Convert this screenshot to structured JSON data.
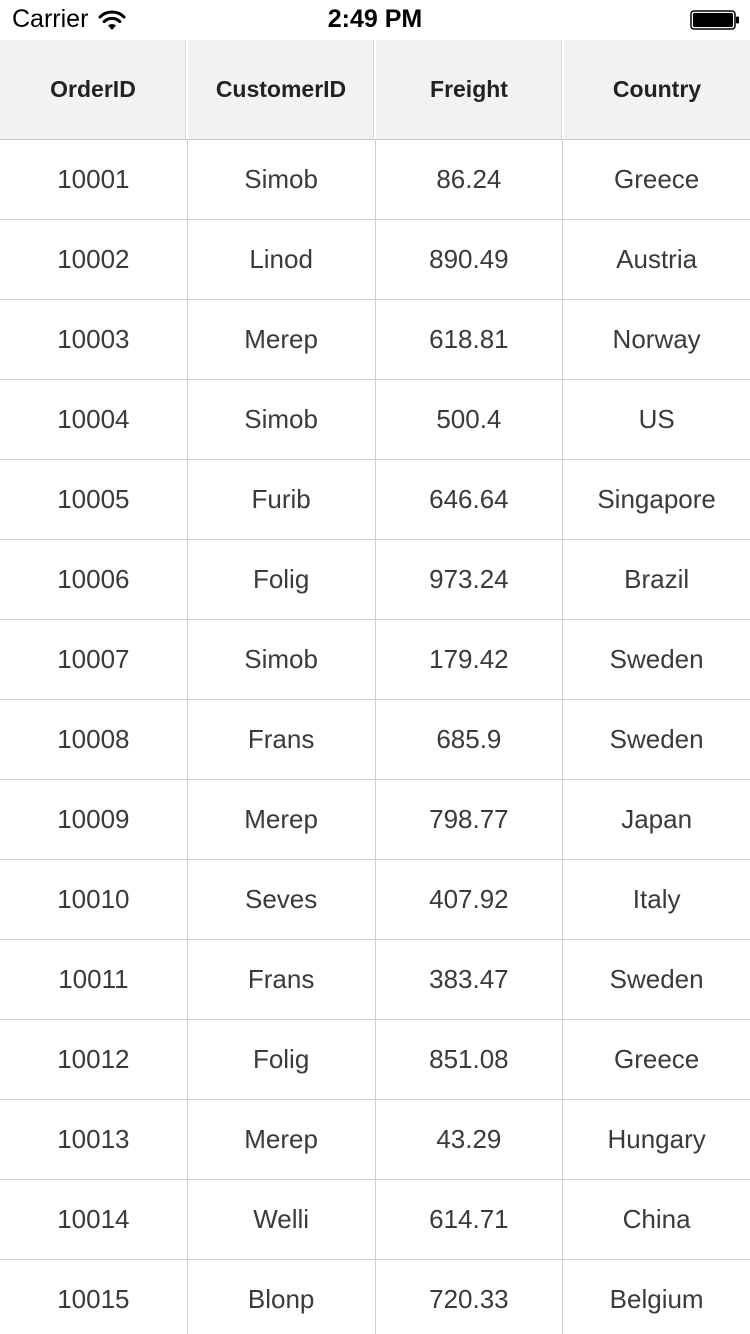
{
  "status_bar": {
    "carrier": "Carrier",
    "time": "2:49 PM"
  },
  "grid": {
    "columns": [
      "OrderID",
      "CustomerID",
      "Freight",
      "Country"
    ],
    "rows": [
      [
        "10001",
        "Simob",
        "86.24",
        "Greece"
      ],
      [
        "10002",
        "Linod",
        "890.49",
        "Austria"
      ],
      [
        "10003",
        "Merep",
        "618.81",
        "Norway"
      ],
      [
        "10004",
        "Simob",
        "500.4",
        "US"
      ],
      [
        "10005",
        "Furib",
        "646.64",
        "Singapore"
      ],
      [
        "10006",
        "Folig",
        "973.24",
        "Brazil"
      ],
      [
        "10007",
        "Simob",
        "179.42",
        "Sweden"
      ],
      [
        "10008",
        "Frans",
        "685.9",
        "Sweden"
      ],
      [
        "10009",
        "Merep",
        "798.77",
        "Japan"
      ],
      [
        "10010",
        "Seves",
        "407.92",
        "Italy"
      ],
      [
        "10011",
        "Frans",
        "383.47",
        "Sweden"
      ],
      [
        "10012",
        "Folig",
        "851.08",
        "Greece"
      ],
      [
        "10013",
        "Merep",
        "43.29",
        "Hungary"
      ],
      [
        "10014",
        "Welli",
        "614.71",
        "China"
      ],
      [
        "10015",
        "Blonp",
        "720.33",
        "Belgium"
      ]
    ]
  }
}
